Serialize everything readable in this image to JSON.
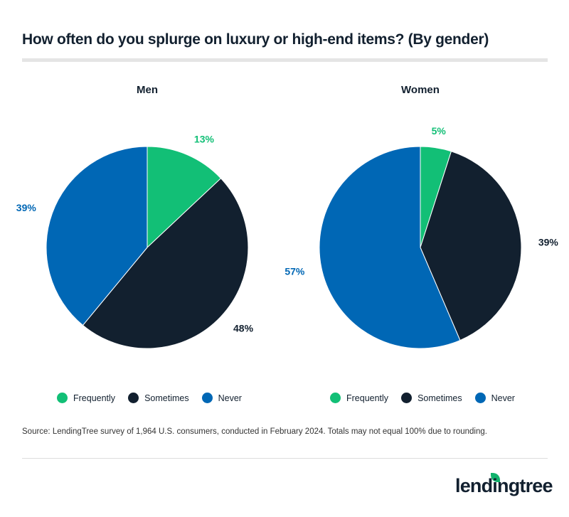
{
  "title": "How often do you splurge on luxury or high-end items? (By gender)",
  "colors": {
    "Frequently": "#12bf76",
    "Sometimes": "#12202f",
    "Never": "#0067b5"
  },
  "chart_data": [
    {
      "type": "pie",
      "title": "Men",
      "categories": [
        "Frequently",
        "Sometimes",
        "Never"
      ],
      "values": [
        13,
        48,
        39
      ],
      "labels": [
        "13%",
        "48%",
        "39%"
      ],
      "legend_placement": "bottom"
    },
    {
      "type": "pie",
      "title": "Women",
      "categories": [
        "Frequently",
        "Sometimes",
        "Never"
      ],
      "values": [
        5,
        39,
        57
      ],
      "labels": [
        "5%",
        "39%",
        "57%"
      ],
      "legend_placement": "bottom"
    }
  ],
  "source": "Source: LendingTree survey of 1,964 U.S. consumers, conducted in February 2024. Totals may not equal 100% due to rounding.",
  "logo": "lendingtree"
}
